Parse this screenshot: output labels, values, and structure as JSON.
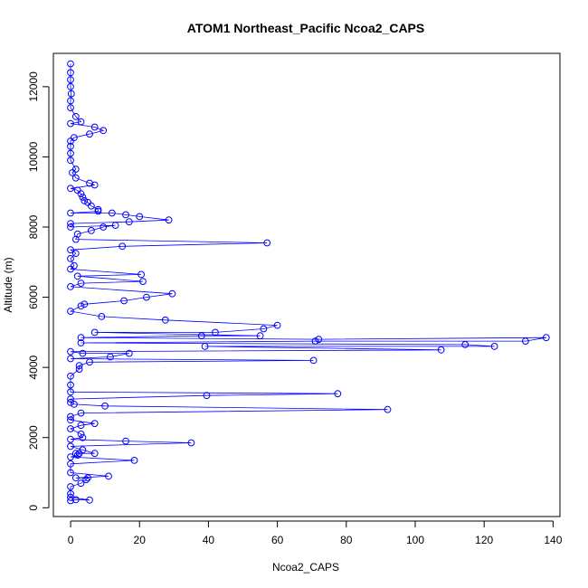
{
  "chart_data": {
    "type": "line",
    "title": "ATOM1 Northeast_Pacific Ncoa2_CAPS",
    "xlabel": "Ncoa2_CAPS",
    "ylabel": "Altitude (m)",
    "xlim": [
      -5,
      142
    ],
    "ylim": [
      -250,
      12950
    ],
    "xticks": [
      0,
      20,
      40,
      60,
      80,
      100,
      120,
      140
    ],
    "yticks": [
      0,
      2000,
      4000,
      6000,
      8000,
      10000,
      12000
    ],
    "grid": false,
    "legend": "none",
    "series": [
      {
        "color": "#0000ff",
        "points": [
          [
            0,
            12650
          ],
          [
            0,
            12400
          ],
          [
            0,
            12200
          ],
          [
            0,
            12000
          ],
          [
            0.2,
            11800
          ],
          [
            0,
            11600
          ],
          [
            0,
            11400
          ],
          [
            1.5,
            11150
          ],
          [
            3,
            11000
          ],
          [
            0,
            10950
          ],
          [
            7,
            10850
          ],
          [
            9.5,
            10750
          ],
          [
            5.5,
            10650
          ],
          [
            1,
            10550
          ],
          [
            0,
            10450
          ],
          [
            0,
            10300
          ],
          [
            0,
            10100
          ],
          [
            0,
            9900
          ],
          [
            1.5,
            9650
          ],
          [
            0.5,
            9550
          ],
          [
            1.5,
            9400
          ],
          [
            5.5,
            9250
          ],
          [
            7,
            9200
          ],
          [
            0,
            9100
          ],
          [
            2,
            9050
          ],
          [
            3,
            8950
          ],
          [
            3.5,
            8850
          ],
          [
            4,
            8750
          ],
          [
            5,
            8700
          ],
          [
            6,
            8600
          ],
          [
            8,
            8500
          ],
          [
            8,
            8450
          ],
          [
            0,
            8400
          ],
          [
            12,
            8400
          ],
          [
            16,
            8350
          ],
          [
            20,
            8300
          ],
          [
            28.5,
            8200
          ],
          [
            17,
            8150
          ],
          [
            0,
            8100
          ],
          [
            0,
            8000
          ],
          [
            13,
            8050
          ],
          [
            9.5,
            8000
          ],
          [
            6,
            7900
          ],
          [
            2,
            7800
          ],
          [
            1.5,
            7650
          ],
          [
            57,
            7550
          ],
          [
            15,
            7450
          ],
          [
            0,
            7350
          ],
          [
            1.5,
            7250
          ],
          [
            0,
            7100
          ],
          [
            1,
            6900
          ],
          [
            0,
            6800
          ],
          [
            20.5,
            6650
          ],
          [
            2,
            6600
          ],
          [
            21,
            6450
          ],
          [
            3,
            6400
          ],
          [
            0,
            6300
          ],
          [
            29.5,
            6100
          ],
          [
            22,
            6000
          ],
          [
            15.5,
            5900
          ],
          [
            4,
            5800
          ],
          [
            3,
            5750
          ],
          [
            0,
            5600
          ],
          [
            9,
            5450
          ],
          [
            27.5,
            5350
          ],
          [
            60,
            5200
          ],
          [
            56,
            5100
          ],
          [
            42,
            5000
          ],
          [
            7,
            5000
          ],
          [
            55,
            4900
          ],
          [
            38,
            4900
          ],
          [
            3,
            4850
          ],
          [
            72,
            4800
          ],
          [
            138,
            4850
          ],
          [
            132,
            4750
          ],
          [
            71,
            4750
          ],
          [
            3,
            4700
          ],
          [
            114.5,
            4650
          ],
          [
            123,
            4600
          ],
          [
            39,
            4600
          ],
          [
            107.5,
            4500
          ],
          [
            0,
            4450
          ],
          [
            3.5,
            4400
          ],
          [
            17,
            4400
          ],
          [
            11.5,
            4300
          ],
          [
            0,
            4250
          ],
          [
            70.5,
            4200
          ],
          [
            5.5,
            4150
          ],
          [
            2.5,
            4050
          ],
          [
            2.5,
            3950
          ],
          [
            0,
            3750
          ],
          [
            0,
            3500
          ],
          [
            0,
            3300
          ],
          [
            77.5,
            3250
          ],
          [
            39.5,
            3200
          ],
          [
            0,
            3100
          ],
          [
            0,
            3000
          ],
          [
            1,
            2950
          ],
          [
            10,
            2900
          ],
          [
            92,
            2800
          ],
          [
            3,
            2700
          ],
          [
            0,
            2600
          ],
          [
            0,
            2500
          ],
          [
            7,
            2400
          ],
          [
            3,
            2350
          ],
          [
            0,
            2250
          ],
          [
            3,
            2100
          ],
          [
            3.5,
            2000
          ],
          [
            0,
            1950
          ],
          [
            16,
            1900
          ],
          [
            35,
            1850
          ],
          [
            0,
            1750
          ],
          [
            3.5,
            1650
          ],
          [
            7,
            1550
          ],
          [
            2.5,
            1550
          ],
          [
            1.5,
            1550
          ],
          [
            2,
            1500
          ],
          [
            0,
            1450
          ],
          [
            18.5,
            1350
          ],
          [
            0,
            1250
          ],
          [
            0,
            1000
          ],
          [
            11,
            900
          ],
          [
            1.5,
            850
          ],
          [
            5,
            850
          ],
          [
            4.5,
            800
          ],
          [
            3,
            700
          ],
          [
            0,
            600
          ],
          [
            0,
            400
          ],
          [
            0,
            300
          ],
          [
            5.5,
            220
          ],
          [
            1.5,
            230
          ],
          [
            0,
            200
          ]
        ]
      }
    ]
  }
}
